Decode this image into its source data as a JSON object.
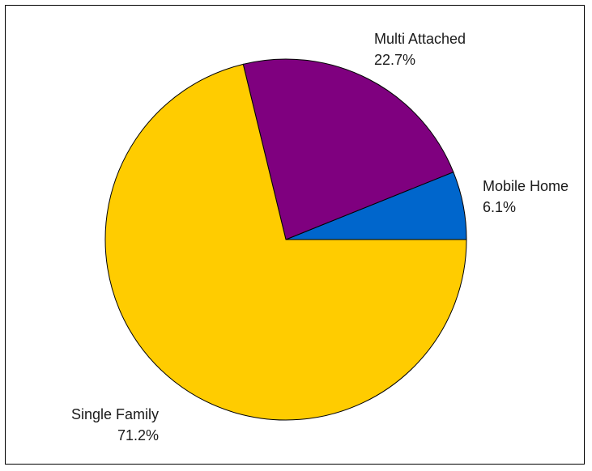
{
  "chart_data": {
    "type": "pie",
    "title": "",
    "slices": [
      {
        "label": "Mobile Home",
        "percent_label": "6.1%",
        "value": 6.1,
        "color": "#0066CC"
      },
      {
        "label": "Multi Attached",
        "percent_label": "22.7%",
        "value": 22.7,
        "color": "#7F007F"
      },
      {
        "label": "Single Family",
        "percent_label": "71.2%",
        "value": 71.2,
        "color": "#FFCC00"
      }
    ],
    "start_angle": "3 o'clock",
    "direction": "counter-clockwise",
    "outline_color": "#000000"
  }
}
